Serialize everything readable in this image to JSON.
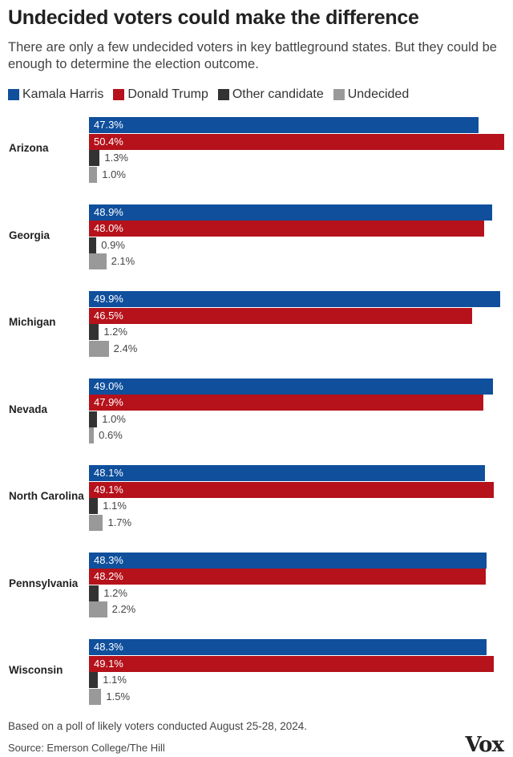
{
  "title": "Undecided voters could make the difference",
  "subtitle": "There are only a few undecided voters in key battleground states. But they could be enough to determine the election outcome.",
  "note": "Based on a poll of likely voters conducted August 25-28, 2024.",
  "source": "Source: Emerson College/The Hill",
  "logo_text": "Vox",
  "colors": {
    "harris": "#0f4f9c",
    "trump": "#b5121b",
    "other": "#333333",
    "undecided": "#999999"
  },
  "chart_data": {
    "type": "bar",
    "orientation": "horizontal",
    "categories": [
      "Arizona",
      "Georgia",
      "Michigan",
      "Nevada",
      "North Carolina",
      "Pennsylvania",
      "Wisconsin"
    ],
    "series": [
      {
        "name": "Kamala Harris",
        "color_key": "harris",
        "values": [
          47.3,
          48.9,
          49.9,
          49.0,
          48.1,
          48.3,
          48.3
        ],
        "labels": [
          "47.3%",
          "48.9%",
          "49.9%",
          "49.0%",
          "48.1%",
          "48.3%",
          "48.3%"
        ]
      },
      {
        "name": "Donald Trump",
        "color_key": "trump",
        "values": [
          50.4,
          48.0,
          46.5,
          47.9,
          49.1,
          48.2,
          49.1
        ],
        "labels": [
          "50.4%",
          "48.0%",
          "46.5%",
          "47.9%",
          "49.1%",
          "48.2%",
          "49.1%"
        ]
      },
      {
        "name": "Other candidate",
        "color_key": "other",
        "values": [
          1.3,
          0.9,
          1.2,
          1.0,
          1.1,
          1.2,
          1.1
        ],
        "labels": [
          "1.3%",
          "0.9%",
          "1.2%",
          "1.0%",
          "1.1%",
          "1.2%",
          "1.1%"
        ]
      },
      {
        "name": "Undecided",
        "color_key": "undecided",
        "values": [
          1.0,
          2.1,
          2.4,
          0.6,
          1.7,
          2.2,
          1.5
        ],
        "labels": [
          "1.0%",
          "2.1%",
          "2.4%",
          "0.6%",
          "1.7%",
          "2.2%",
          "1.5%"
        ]
      }
    ],
    "unit": "%",
    "legend": "top-left",
    "grid": false
  }
}
